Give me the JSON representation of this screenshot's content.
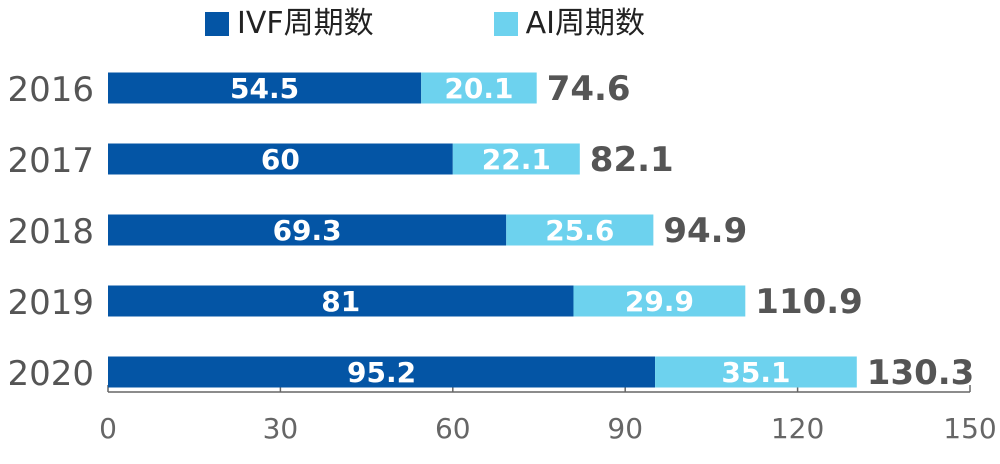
{
  "chart_data": {
    "type": "bar",
    "orientation": "horizontal",
    "stacked": true,
    "categories": [
      "2016",
      "2017",
      "2018",
      "2019",
      "2020"
    ],
    "series": [
      {
        "name": "IVF周期数",
        "color": "#0455a5",
        "values": [
          54.5,
          60,
          69.3,
          81,
          95.2
        ]
      },
      {
        "name": "AI周期数",
        "color": "#6dd2ee",
        "values": [
          20.1,
          22.1,
          25.6,
          29.9,
          35.1
        ]
      }
    ],
    "segment_labels": [
      [
        "54.5",
        "60",
        "69.3",
        "81",
        "95.2"
      ],
      [
        "20.1",
        "22.1",
        "25.6",
        "29.9",
        "35.1"
      ]
    ],
    "totals": [
      "74.6",
      "82.1",
      "94.9",
      "110.9",
      "130.3"
    ],
    "xlim": [
      0,
      150
    ],
    "xticks": [
      "0",
      "30",
      "60",
      "90",
      "120",
      "150"
    ],
    "legend_position": "top",
    "grid": false,
    "colors": {
      "axis": "#666666",
      "category_text": "#555555",
      "total_text": "#555555",
      "segment_text": "#ffffff"
    }
  }
}
